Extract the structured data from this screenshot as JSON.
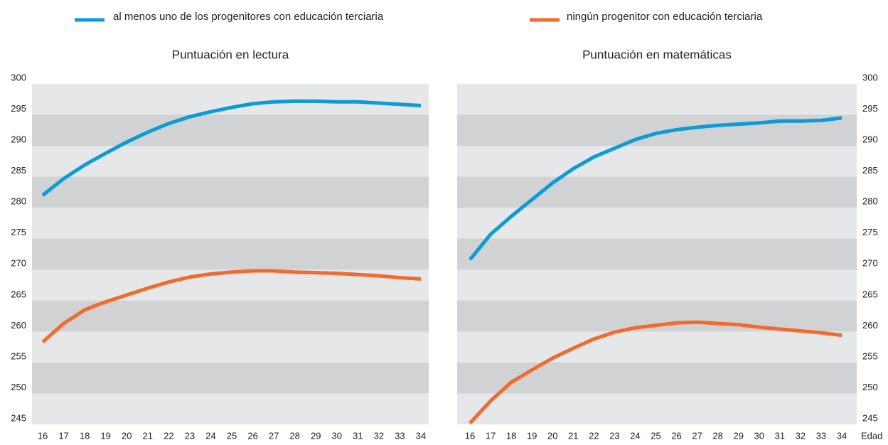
{
  "chart_data": [
    {
      "type": "line",
      "title": "Puntuación en lectura",
      "x": [
        16,
        17,
        18,
        19,
        20,
        21,
        22,
        23,
        24,
        25,
        26,
        27,
        28,
        29,
        30,
        31,
        32,
        33,
        34
      ],
      "series": [
        {
          "name": "al menos uno de los progenitores con educación terciaria",
          "color": "#0a9bd8",
          "values": [
            282,
            284.7,
            286.9,
            288.8,
            290.6,
            292.2,
            293.6,
            294.7,
            295.5,
            296.2,
            296.8,
            297.1,
            297.2,
            297.2,
            297.1,
            297.1,
            296.9,
            296.7,
            296.5
          ]
        },
        {
          "name": "ningún progenitor con educación terciaria",
          "color": "#f26a2e",
          "values": [
            258.3,
            261.3,
            263.5,
            264.8,
            265.9,
            267.0,
            268.0,
            268.8,
            269.3,
            269.6,
            269.8,
            269.8,
            269.6,
            269.5,
            269.4,
            269.2,
            269.0,
            268.7,
            268.5
          ]
        }
      ],
      "ylim": [
        245,
        300
      ],
      "yticks": [
        245,
        250,
        255,
        260,
        265,
        270,
        275,
        280,
        285,
        290,
        295,
        300
      ],
      "grid": "bands",
      "axis_side": "left"
    },
    {
      "type": "line",
      "title": "Puntuación en matemáticas",
      "xlabel": "Edad",
      "x": [
        16,
        17,
        18,
        19,
        20,
        21,
        22,
        23,
        24,
        25,
        26,
        27,
        28,
        29,
        30,
        31,
        32,
        33,
        34
      ],
      "series": [
        {
          "color": "#0a9bd8",
          "values": [
            271.6,
            275.7,
            278.6,
            281.3,
            284.0,
            286.3,
            288.2,
            289.6,
            291.0,
            292.0,
            292.6,
            293.0,
            293.3,
            293.5,
            293.7,
            294.0,
            294.0,
            294.1,
            294.5
          ]
        },
        {
          "color": "#f26a2e",
          "values": [
            245.2,
            248.8,
            251.8,
            253.8,
            255.7,
            257.3,
            258.8,
            259.9,
            260.6,
            261.0,
            261.4,
            261.5,
            261.3,
            261.1,
            260.7,
            260.4,
            260.1,
            259.8,
            259.4
          ]
        }
      ],
      "ylim": [
        245,
        300
      ],
      "yticks": [
        245,
        250,
        255,
        260,
        265,
        270,
        275,
        280,
        285,
        290,
        295,
        300
      ],
      "grid": "bands",
      "axis_side": "right"
    }
  ]
}
